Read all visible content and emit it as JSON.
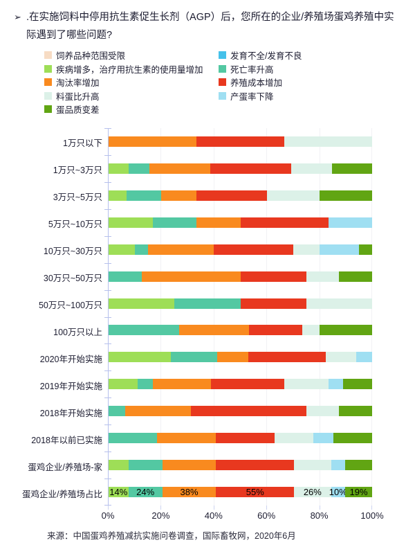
{
  "title": {
    "bullet": "➢",
    "text": ".在实施饲料中停用抗生素促生长剂（AGP）后，您所在的企业/养殖场蛋鸡养殖中实际遇到了哪些问题?"
  },
  "colors": {
    "cream": "#F7DCC4",
    "skyblue": "#45C1EA",
    "yellowgreen": "#9EDE57",
    "teal": "#53C8A2",
    "orange": "#F98A1F",
    "red": "#E8381F",
    "palegreen": "#DCF1E8",
    "lightblue": "#9FDFF2",
    "darkgreen": "#61A513",
    "axis": "#b6c0ec",
    "gridline": "#f1f1f5"
  },
  "legend": {
    "left": [
      {
        "label": "饲养品种范围受限",
        "color": "cream"
      },
      {
        "label": "疾病增多，治疗用抗生素的使用量增加",
        "color": "yellowgreen"
      },
      {
        "label": "淘汰率增加",
        "color": "orange"
      },
      {
        "label": "料蛋比升高",
        "color": "palegreen"
      },
      {
        "label": "蛋品质变差",
        "color": "darkgreen"
      }
    ],
    "right": [
      {
        "label": "发育不全/发育不良",
        "color": "skyblue"
      },
      {
        "label": "死亡率升高",
        "color": "teal"
      },
      {
        "label": "养殖成本增加",
        "color": "red"
      },
      {
        "label": "产蛋率下降",
        "color": "lightblue"
      }
    ]
  },
  "chart_data": {
    "type": "bar",
    "orientation": "horizontal",
    "stacked": true,
    "grid": true,
    "xlim": [
      0,
      100
    ],
    "x_ticks": [
      "0%",
      "20%",
      "40%",
      "60%",
      "80%",
      "100%"
    ],
    "series": [
      {
        "name": "饲养品种范围受限",
        "color": "cream"
      },
      {
        "name": "发育不全/发育不良",
        "color": "skyblue"
      },
      {
        "name": "疾病增多，治疗用抗生素的使用量增加",
        "color": "yellowgreen"
      },
      {
        "name": "死亡率升高",
        "color": "teal"
      },
      {
        "name": "淘汰率增加",
        "color": "orange"
      },
      {
        "name": "养殖成本增加",
        "color": "red"
      },
      {
        "name": "料蛋比升高",
        "color": "palegreen"
      },
      {
        "name": "产蛋率下降",
        "color": "lightblue"
      },
      {
        "name": "蛋品质变差",
        "color": "darkgreen"
      }
    ],
    "rows": [
      {
        "category": "1万只以下",
        "segments": [
          {
            "series_index": 4,
            "pct": 33.3
          },
          {
            "series_index": 5,
            "pct": 33.3
          },
          {
            "series_index": 6,
            "pct": 33.4
          }
        ]
      },
      {
        "category": "1万只~3万只",
        "segments": [
          {
            "series_index": 2,
            "pct": 7.7
          },
          {
            "series_index": 3,
            "pct": 7.7
          },
          {
            "series_index": 4,
            "pct": 23.1
          },
          {
            "series_index": 5,
            "pct": 30.8
          },
          {
            "series_index": 6,
            "pct": 15.4
          },
          {
            "series_index": 8,
            "pct": 15.3
          }
        ]
      },
      {
        "category": "3万只~5万只",
        "segments": [
          {
            "series_index": 2,
            "pct": 6.7
          },
          {
            "series_index": 3,
            "pct": 13.3
          },
          {
            "series_index": 4,
            "pct": 13.3
          },
          {
            "series_index": 5,
            "pct": 26.7
          },
          {
            "series_index": 6,
            "pct": 20
          },
          {
            "series_index": 8,
            "pct": 20
          }
        ]
      },
      {
        "category": "5万只~10万只",
        "segments": [
          {
            "series_index": 2,
            "pct": 16.7
          },
          {
            "series_index": 3,
            "pct": 16.7
          },
          {
            "series_index": 4,
            "pct": 16.7
          },
          {
            "series_index": 5,
            "pct": 33.3
          },
          {
            "series_index": 7,
            "pct": 16.6
          }
        ]
      },
      {
        "category": "10万只~30万只",
        "segments": [
          {
            "series_index": 2,
            "pct": 10
          },
          {
            "series_index": 3,
            "pct": 5
          },
          {
            "series_index": 4,
            "pct": 25
          },
          {
            "series_index": 5,
            "pct": 30
          },
          {
            "series_index": 6,
            "pct": 10
          },
          {
            "series_index": 7,
            "pct": 15
          },
          {
            "series_index": 8,
            "pct": 5
          }
        ]
      },
      {
        "category": "30万只~50万只",
        "segments": [
          {
            "series_index": 3,
            "pct": 12.5
          },
          {
            "series_index": 4,
            "pct": 37.5
          },
          {
            "series_index": 5,
            "pct": 25
          },
          {
            "series_index": 6,
            "pct": 12.5
          },
          {
            "series_index": 8,
            "pct": 12.5
          }
        ]
      },
      {
        "category": "50万只~100万只",
        "segments": [
          {
            "series_index": 2,
            "pct": 25
          },
          {
            "series_index": 3,
            "pct": 25
          },
          {
            "series_index": 5,
            "pct": 25
          },
          {
            "series_index": 6,
            "pct": 25
          }
        ]
      },
      {
        "category": "100万只以上",
        "segments": [
          {
            "series_index": 3,
            "pct": 26.7
          },
          {
            "series_index": 4,
            "pct": 26.7
          },
          {
            "series_index": 5,
            "pct": 20
          },
          {
            "series_index": 6,
            "pct": 6.6
          },
          {
            "series_index": 8,
            "pct": 20
          }
        ]
      },
      {
        "category": "2020年开始实施",
        "segments": [
          {
            "series_index": 2,
            "pct": 23.5
          },
          {
            "series_index": 3,
            "pct": 17.6
          },
          {
            "series_index": 4,
            "pct": 11.8
          },
          {
            "series_index": 5,
            "pct": 29.4
          },
          {
            "series_index": 6,
            "pct": 11.8
          },
          {
            "series_index": 7,
            "pct": 5.9
          }
        ]
      },
      {
        "category": "2019年开始实施",
        "segments": [
          {
            "series_index": 2,
            "pct": 11.1
          },
          {
            "series_index": 3,
            "pct": 5.6
          },
          {
            "series_index": 4,
            "pct": 22.2
          },
          {
            "series_index": 5,
            "pct": 27.8
          },
          {
            "series_index": 6,
            "pct": 16.7
          },
          {
            "series_index": 7,
            "pct": 5.5
          },
          {
            "series_index": 8,
            "pct": 11.1
          }
        ]
      },
      {
        "category": "2018年开始实施",
        "segments": [
          {
            "series_index": 3,
            "pct": 6.3
          },
          {
            "series_index": 4,
            "pct": 25
          },
          {
            "series_index": 5,
            "pct": 43.7
          },
          {
            "series_index": 6,
            "pct": 12.5
          },
          {
            "series_index": 8,
            "pct": 12.5
          }
        ]
      },
      {
        "category": "2018年以前已实施",
        "segments": [
          {
            "series_index": 3,
            "pct": 18.5
          },
          {
            "series_index": 4,
            "pct": 22.2
          },
          {
            "series_index": 5,
            "pct": 22.2
          },
          {
            "series_index": 6,
            "pct": 14.9
          },
          {
            "series_index": 7,
            "pct": 7.4
          },
          {
            "series_index": 8,
            "pct": 14.8
          }
        ]
      },
      {
        "category": "蛋鸡企业/养殖场-家",
        "segments": [
          {
            "series_index": 2,
            "pct": 7.5
          },
          {
            "series_index": 3,
            "pct": 12.9
          },
          {
            "series_index": 4,
            "pct": 20.4
          },
          {
            "series_index": 5,
            "pct": 29.6
          },
          {
            "series_index": 6,
            "pct": 14.0
          },
          {
            "series_index": 7,
            "pct": 5.4
          },
          {
            "series_index": 8,
            "pct": 10.2
          }
        ]
      },
      {
        "category": "蛋鸡企业/养殖场占比",
        "segments": [
          {
            "series_index": 2,
            "pct": 7.5,
            "label": "14%"
          },
          {
            "series_index": 3,
            "pct": 12.9,
            "label": "24%"
          },
          {
            "series_index": 4,
            "pct": 20.4,
            "label": "38%"
          },
          {
            "series_index": 5,
            "pct": 29.6,
            "label": "55%"
          },
          {
            "series_index": 6,
            "pct": 14.0,
            "label": "26%"
          },
          {
            "series_index": 7,
            "pct": 5.4,
            "label": "10%"
          },
          {
            "series_index": 8,
            "pct": 10.2,
            "label": "19%"
          }
        ]
      }
    ],
    "bottom_row_respondent_pct": {
      "疾病增多，治疗用抗生素的使用量增加": 14,
      "死亡率升高": 24,
      "淘汰率增加": 38,
      "养殖成本增加": 55,
      "料蛋比升高": 26,
      "产蛋率下降": 10,
      "蛋品质变差": 19
    }
  },
  "source": "来源：中国蛋鸡养殖减抗实施问卷调查，国际畜牧网，2020年6月"
}
